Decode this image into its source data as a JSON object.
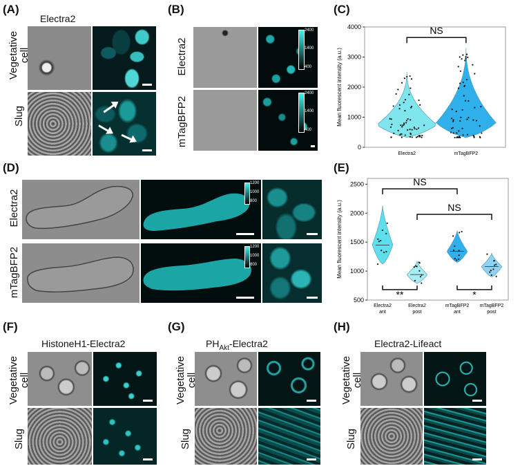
{
  "panels": {
    "A": {
      "label": "(A)",
      "title": "Electra2",
      "rows": [
        "Vegetative\ncell",
        "Slug"
      ]
    },
    "B": {
      "label": "(B)",
      "rows": [
        "Electra2",
        "mTagBFP2"
      ],
      "colorbar": [
        "2400",
        "1400",
        "400"
      ]
    },
    "C": {
      "label": "(C)"
    },
    "D": {
      "label": "(D)",
      "rows": [
        "Electra2",
        "mTagBFP2"
      ],
      "colorbar": [
        "1200",
        "1000",
        "800"
      ]
    },
    "E": {
      "label": "(E)"
    },
    "F": {
      "label": "(F)",
      "title": "HistoneH1-Electra2",
      "rows": [
        "Vegetative\ncell",
        "Slug"
      ]
    },
    "G": {
      "label": "(G)",
      "title_main": "PH",
      "title_sub": "Akt",
      "title_rest": "-Electra2",
      "rows": [
        "Vegetative\ncell",
        "Slug"
      ]
    },
    "H": {
      "label": "(H)",
      "title": "Electra2-Lifeact",
      "rows": [
        "Vegetative\ncell",
        "Slug"
      ]
    }
  },
  "chart_data": [
    {
      "panel": "C",
      "type": "violin",
      "ylabel": "Mean fluorescent intensity (a.u.)",
      "xlabel": "",
      "ylim": [
        0,
        4000
      ],
      "yticks": [
        0,
        1000,
        2000,
        3000,
        4000
      ],
      "categories": [
        "Electra2",
        "mTagBFP2"
      ],
      "violin_fill": "#7ee6ec",
      "violin_fill_2": "#2fb0ea",
      "series": [
        {
          "category": "Electra2",
          "median": 740,
          "min": 330,
          "max": 2500
        },
        {
          "category": "mTagBFP2",
          "median": 800,
          "min": 320,
          "max": 3300
        }
      ],
      "annotations": [
        {
          "text": "NS",
          "between": [
            "Electra2",
            "mTagBFP2"
          ]
        }
      ]
    },
    {
      "panel": "E",
      "type": "violin",
      "ylabel": "Mean fluorescent intensity (a.u.)",
      "xlabel": "",
      "ylim": [
        500,
        2600
      ],
      "yticks": [
        500,
        1000,
        1500,
        2000,
        2500
      ],
      "categories": [
        "Electra2\nant",
        "Electra2\npost",
        "mTagBFP2\nant",
        "mTagBFP2\npost"
      ],
      "series": [
        {
          "category": "Electra2 ant",
          "median": 1450,
          "min": 1120,
          "max": 2130,
          "color": "#5ee0ec"
        },
        {
          "category": "Electra2 post",
          "median": 940,
          "min": 790,
          "max": 1170,
          "color": "#a7eef4"
        },
        {
          "category": "mTagBFP2 ant",
          "median": 1340,
          "min": 1150,
          "max": 1700,
          "color": "#2fb0ea"
        },
        {
          "category": "mTagBFP2 post",
          "median": 1080,
          "min": 900,
          "max": 1310,
          "color": "#8fd3f2"
        }
      ],
      "annotations": [
        {
          "text": "NS",
          "between": [
            "Electra2 ant",
            "mTagBFP2 ant"
          ]
        },
        {
          "text": "NS",
          "between": [
            "Electra2 post",
            "mTagBFP2 post"
          ]
        },
        {
          "text": "**",
          "between": [
            "Electra2 ant",
            "Electra2 post"
          ]
        },
        {
          "text": "*",
          "between": [
            "mTagBFP2 ant",
            "mTagBFP2 post"
          ]
        }
      ]
    }
  ]
}
